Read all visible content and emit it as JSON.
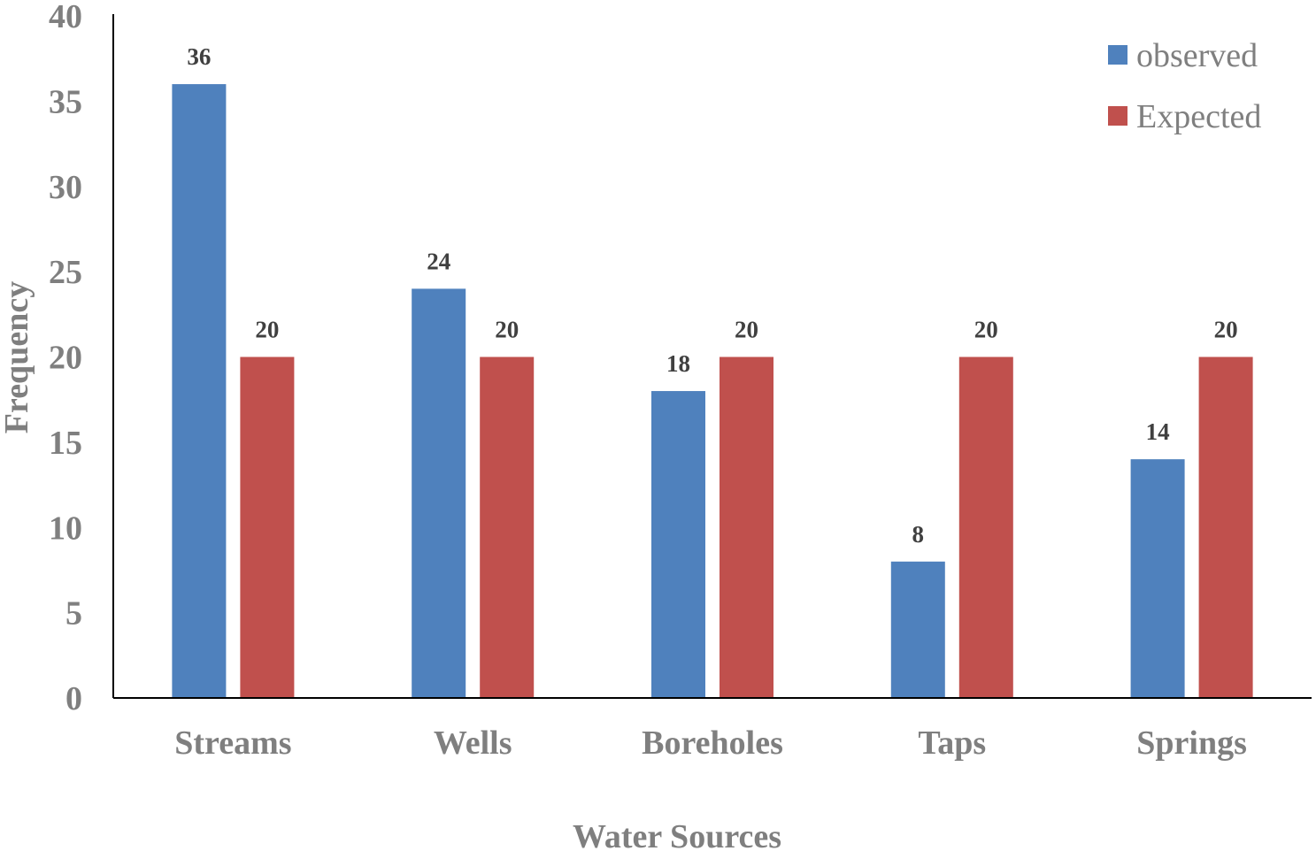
{
  "chart_data": {
    "type": "bar",
    "categories": [
      "Streams",
      "Wells",
      "Boreholes",
      "Taps",
      "Springs"
    ],
    "series": [
      {
        "name": "observed",
        "values": [
          36,
          24,
          18,
          8,
          14
        ],
        "color": "#4f81bd"
      },
      {
        "name": "Expected",
        "values": [
          20,
          20,
          20,
          20,
          20
        ],
        "color": "#c0504d"
      }
    ],
    "title": "",
    "xlabel": "Water Sources",
    "ylabel": "Frequency",
    "ylim": [
      0,
      40
    ],
    "yticks": [
      0,
      5,
      10,
      15,
      20,
      25,
      30,
      35,
      40
    ],
    "grid": false,
    "legend_position": "top-right",
    "data_labels": true
  }
}
